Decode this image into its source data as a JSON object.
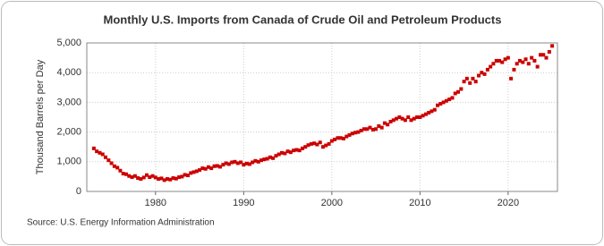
{
  "chart_data": {
    "type": "scatter",
    "title": "Monthly U.S. Imports from Canada of Crude Oil and Petroleum Products",
    "y_label": "Thousand Barrels per Day",
    "source": "Source: U.S. Energy Information Administration",
    "color": "#cc0000",
    "grid": true,
    "xlim": [
      1972.2,
      2025.6
    ],
    "xticks": [
      1980,
      1990,
      2000,
      2010,
      2020
    ],
    "ylim": [
      0,
      5000
    ],
    "yticks": [
      0,
      {
        "value": 1000,
        "label": "1,000"
      },
      {
        "value": 2000,
        "label": "2,000"
      },
      {
        "value": 3000,
        "label": "3,000"
      },
      {
        "value": 4000,
        "label": "4,000"
      },
      {
        "value": 5000,
        "label": "5,000"
      }
    ],
    "x": [
      1973,
      1973.33,
      1973.67,
      1974,
      1974.33,
      1974.67,
      1975,
      1975.33,
      1975.67,
      1976,
      1976.33,
      1976.67,
      1977,
      1977.33,
      1977.67,
      1978,
      1978.33,
      1978.67,
      1979,
      1979.33,
      1979.67,
      1980,
      1980.33,
      1980.67,
      1981,
      1981.33,
      1981.67,
      1982,
      1982.33,
      1982.67,
      1983,
      1983.33,
      1983.67,
      1984,
      1984.33,
      1984.67,
      1985,
      1985.33,
      1985.67,
      1986,
      1986.33,
      1986.67,
      1987,
      1987.33,
      1987.67,
      1988,
      1988.33,
      1988.67,
      1989,
      1989.33,
      1989.67,
      1990,
      1990.33,
      1990.67,
      1991,
      1991.33,
      1991.67,
      1992,
      1992.33,
      1992.67,
      1993,
      1993.33,
      1993.67,
      1994,
      1994.33,
      1994.67,
      1995,
      1995.33,
      1995.67,
      1996,
      1996.33,
      1996.67,
      1997,
      1997.33,
      1997.67,
      1998,
      1998.33,
      1998.67,
      1999,
      1999.33,
      1999.67,
      2000,
      2000.33,
      2000.67,
      2001,
      2001.33,
      2001.67,
      2002,
      2002.33,
      2002.67,
      2003,
      2003.33,
      2003.67,
      2004,
      2004.33,
      2004.67,
      2005,
      2005.33,
      2005.67,
      2006,
      2006.33,
      2006.67,
      2007,
      2007.33,
      2007.67,
      2008,
      2008.33,
      2008.67,
      2009,
      2009.33,
      2009.67,
      2010,
      2010.33,
      2010.67,
      2011,
      2011.33,
      2011.67,
      2012,
      2012.33,
      2012.67,
      2013,
      2013.33,
      2013.67,
      2014,
      2014.33,
      2014.67,
      2015,
      2015.33,
      2015.67,
      2016,
      2016.33,
      2016.67,
      2017,
      2017.33,
      2017.67,
      2018,
      2018.33,
      2018.67,
      2019,
      2019.33,
      2019.67,
      2020,
      2020.33,
      2020.67,
      2021,
      2021.33,
      2021.67,
      2022,
      2022.33,
      2022.67,
      2023,
      2023.33,
      2023.67,
      2024,
      2024.33,
      2024.67,
      2025
    ],
    "values": [
      1450,
      1350,
      1300,
      1250,
      1150,
      1050,
      950,
      850,
      800,
      700,
      600,
      580,
      520,
      480,
      520,
      450,
      420,
      470,
      550,
      480,
      520,
      470,
      420,
      440,
      380,
      420,
      400,
      450,
      430,
      480,
      500,
      560,
      540,
      620,
      650,
      680,
      720,
      780,
      760,
      820,
      780,
      850,
      860,
      830,
      900,
      950,
      920,
      980,
      1000,
      950,
      980,
      900,
      940,
      920,
      980,
      1030,
      1000,
      1050,
      1080,
      1100,
      1150,
      1120,
      1200,
      1250,
      1300,
      1280,
      1350,
      1320,
      1380,
      1400,
      1380,
      1450,
      1500,
      1560,
      1600,
      1620,
      1580,
      1650,
      1500,
      1550,
      1600,
      1700,
      1750,
      1800,
      1800,
      1780,
      1850,
      1900,
      1950,
      1980,
      2000,
      2050,
      2100,
      2100,
      2150,
      2080,
      2100,
      2200,
      2150,
      2300,
      2250,
      2350,
      2400,
      2450,
      2500,
      2450,
      2400,
      2500,
      2400,
      2450,
      2500,
      2500,
      2550,
      2600,
      2650,
      2700,
      2750,
      2900,
      2950,
      3000,
      3050,
      3100,
      3150,
      3300,
      3350,
      3450,
      3700,
      3800,
      3650,
      3800,
      3700,
      3900,
      4000,
      3950,
      4100,
      4200,
      4300,
      4400,
      4400,
      4350,
      4450,
      4500,
      3800,
      4100,
      4300,
      4400,
      4350,
      4450,
      4300,
      4500,
      4400,
      4200,
      4600,
      4600,
      4500,
      4700,
      4900
    ]
  }
}
